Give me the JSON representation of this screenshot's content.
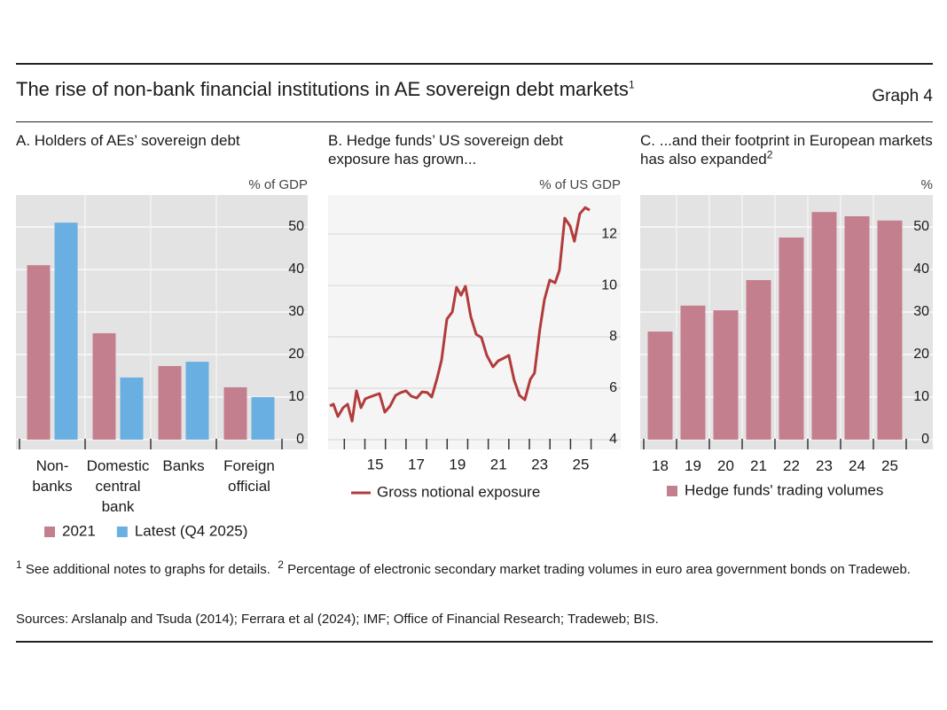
{
  "header": {
    "title": "The rise of non-bank financial institutions in AE sovereign debt markets",
    "title_note": "1",
    "graph_label": "Graph 4"
  },
  "chart_data": [
    {
      "type": "bar",
      "title": "A. Holders of AEs’ sovereign debt",
      "y_unit": "% of GDP",
      "categories": [
        "Non-\nbanks",
        "Domestic\ncentral\nbank",
        "Banks",
        "Foreign\nofficial"
      ],
      "series": [
        {
          "name": "2021",
          "color": "#c47f8e",
          "values": [
            41,
            25,
            17.3,
            12.3
          ]
        },
        {
          "name": "Latest (Q4 2025)",
          "color": "#6aafe2",
          "values": [
            51,
            14.6,
            18.3,
            10
          ]
        }
      ],
      "ylim": [
        -2.3,
        57.5
      ],
      "yticks": [
        0,
        10,
        20,
        30,
        40,
        50
      ],
      "grid": true
    },
    {
      "type": "line",
      "title": "B. Hedge funds’ US sovereign debt exposure has grown...",
      "y_unit": "% of US GDP",
      "x": [
        13.3,
        13.47,
        13.69,
        13.94,
        14.16,
        14.38,
        14.59,
        14.81,
        15.02,
        15.24,
        15.45,
        15.71,
        15.97,
        16.23,
        16.49,
        16.74,
        17.0,
        17.26,
        17.52,
        17.78,
        18.04,
        18.25,
        18.51,
        18.73,
        18.99,
        19.25,
        19.46,
        19.68,
        19.89,
        20.15,
        20.41,
        20.67,
        20.93,
        21.23,
        21.49,
        21.75,
        22.0,
        22.26,
        22.52,
        22.78,
        23.04,
        23.25,
        23.51,
        23.73,
        23.99,
        24.25,
        24.46,
        24.72,
        24.98,
        25.19,
        25.45,
        25.71,
        25.93
      ],
      "series": [
        {
          "name": "Gross notional exposure",
          "color": "#b23b3b",
          "values": [
            5.31,
            5.38,
            4.9,
            5.24,
            5.38,
            4.72,
            5.9,
            5.24,
            5.59,
            5.66,
            5.72,
            5.79,
            5.07,
            5.31,
            5.72,
            5.83,
            5.9,
            5.69,
            5.62,
            5.86,
            5.83,
            5.66,
            6.38,
            7.1,
            8.69,
            8.97,
            9.93,
            9.62,
            9.97,
            8.79,
            8.1,
            7.97,
            7.28,
            6.83,
            7.07,
            7.17,
            7.28,
            6.31,
            5.72,
            5.55,
            6.34,
            6.59,
            8.31,
            9.45,
            10.21,
            10.1,
            10.59,
            12.62,
            12.31,
            11.72,
            12.79,
            13.03,
            12.93
          ]
        }
      ],
      "xlim": [
        13.21,
        27.44
      ],
      "xticks": [
        {
          "value": 15.5,
          "label": "15"
        },
        {
          "value": 17.5,
          "label": "17"
        },
        {
          "value": 19.5,
          "label": "19"
        },
        {
          "value": 21.5,
          "label": "21"
        },
        {
          "value": 23.5,
          "label": "23"
        },
        {
          "value": 25.5,
          "label": "25"
        }
      ],
      "xminor_ticks": [
        14,
        15,
        16,
        17,
        18,
        19,
        20,
        21,
        22,
        23,
        24,
        25,
        26
      ],
      "ylim": [
        3.62,
        13.52
      ],
      "yticks": [
        4,
        6,
        8,
        10,
        12
      ],
      "grid": true
    },
    {
      "type": "bar",
      "title": "C. ...and their footprint in European markets has also expanded",
      "title_note": "2",
      "y_unit": "%",
      "categories": [
        "18",
        "19",
        "20",
        "21",
        "22",
        "23",
        "24",
        "25"
      ],
      "series": [
        {
          "name": "Hedge funds' trading volumes",
          "color": "#c47f8e",
          "values": [
            25.4,
            31.5,
            30.4,
            37.5,
            47.5,
            53.5,
            52.5,
            51.5
          ]
        }
      ],
      "ylim": [
        -2.3,
        57.5
      ],
      "yticks": [
        0,
        10,
        20,
        30,
        40,
        50
      ],
      "grid": true
    }
  ],
  "footnotes": [
    {
      "mark": "1",
      "text": "See additional notes to graphs for details."
    },
    {
      "mark": "2",
      "text": "Percentage of electronic secondary market trading volumes in euro area government bonds on Tradeweb."
    }
  ],
  "sources": "Sources: Arslanalp and Tsuda (2014); Ferrara et al (2024); IMF; Office of Financial Research; Tradeweb; BIS."
}
